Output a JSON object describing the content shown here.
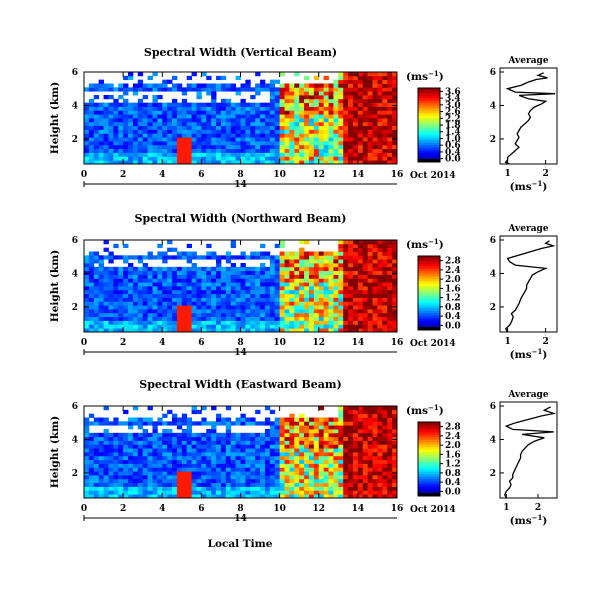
{
  "chart_data": [
    {
      "type": "heatmap",
      "title": "Spectral Width (Vertical Beam)",
      "ylabel": "Height (km)",
      "xticks": [
        "0",
        "2",
        "4",
        "6",
        "8",
        "10",
        "12",
        "14",
        "16"
      ],
      "yticks": [
        "2",
        "4",
        "6"
      ],
      "xlim": [
        0,
        16
      ],
      "ylim": [
        0.5,
        6
      ],
      "date_day": "14",
      "date_suffix": "Oct 2014",
      "colorbar": {
        "unit": "(ms",
        "unit_sup": "−1",
        "unit_close": ")",
        "ticks": [
          "3.6",
          "3.4",
          "3.0",
          "2.6",
          "2.2",
          "1.8",
          "1.4",
          "1.0",
          "0.6",
          "0.4",
          "0.0"
        ],
        "range": [
          0,
          3.6
        ]
      },
      "average": {
        "title": "Average",
        "xlabel": "(ms",
        "xlabel_sup": "−1",
        "xlabel_close": ")",
        "xticks": [
          "1",
          "2"
        ],
        "yticks": [
          "2",
          "4",
          "6"
        ],
        "xlim": [
          0.8,
          2.3
        ],
        "profile": [
          [
            1.05,
            0.5
          ],
          [
            0.95,
            0.6
          ],
          [
            1.0,
            0.75
          ],
          [
            1.0,
            0.9
          ],
          [
            1.1,
            1.1
          ],
          [
            1.2,
            1.3
          ],
          [
            1.3,
            1.5
          ],
          [
            1.2,
            1.7
          ],
          [
            1.25,
            1.9
          ],
          [
            1.3,
            2.1
          ],
          [
            1.25,
            2.3
          ],
          [
            1.3,
            2.5
          ],
          [
            1.35,
            2.7
          ],
          [
            1.45,
            2.9
          ],
          [
            1.55,
            3.1
          ],
          [
            1.6,
            3.3
          ],
          [
            1.55,
            3.5
          ],
          [
            1.6,
            3.7
          ],
          [
            1.7,
            3.9
          ],
          [
            1.9,
            4.1
          ],
          [
            2.0,
            4.25
          ],
          [
            1.55,
            4.4
          ],
          [
            1.3,
            4.6
          ],
          [
            2.25,
            4.7
          ],
          [
            1.2,
            4.8
          ],
          [
            1.0,
            5.0
          ],
          [
            1.35,
            5.2
          ],
          [
            1.55,
            5.4
          ],
          [
            1.75,
            5.55
          ],
          [
            2.05,
            5.65
          ],
          [
            1.8,
            5.8
          ],
          [
            1.95,
            5.95
          ]
        ]
      },
      "field": {
        "nx": 64,
        "ny": 24,
        "gap_top": 5.3,
        "gap_mid": [
          4.2,
          4.8
        ],
        "seed": 11
      }
    },
    {
      "type": "heatmap",
      "title": "Spectral Width (Northward Beam)",
      "ylabel": "Height (km)",
      "xticks": [
        "0",
        "2",
        "4",
        "6",
        "8",
        "10",
        "12",
        "14",
        "16"
      ],
      "yticks": [
        "2",
        "4",
        "6"
      ],
      "xlim": [
        0,
        16
      ],
      "ylim": [
        0.5,
        6
      ],
      "date_day": "14",
      "date_suffix": "Oct 2014",
      "colorbar": {
        "unit": "(ms",
        "unit_sup": "−1",
        "unit_close": ")",
        "ticks": [
          "2.8",
          "2.4",
          "2.0",
          "1.6",
          "1.2",
          "0.8",
          "0.4",
          "0.0"
        ],
        "range": [
          0,
          2.8
        ]
      },
      "average": {
        "title": "Average",
        "xlabel": "(ms",
        "xlabel_sup": "−1",
        "xlabel_close": ")",
        "xticks": [
          "1",
          "2"
        ],
        "yticks": [
          "2",
          "4",
          "6"
        ],
        "xlim": [
          0.8,
          2.3
        ],
        "profile": [
          [
            1.0,
            0.5
          ],
          [
            0.95,
            0.7
          ],
          [
            1.05,
            0.9
          ],
          [
            1.1,
            1.1
          ],
          [
            1.15,
            1.4
          ],
          [
            1.1,
            1.6
          ],
          [
            1.2,
            1.8
          ],
          [
            1.25,
            2.0
          ],
          [
            1.3,
            2.2
          ],
          [
            1.35,
            2.5
          ],
          [
            1.4,
            2.7
          ],
          [
            1.45,
            2.9
          ],
          [
            1.5,
            3.1
          ],
          [
            1.5,
            3.3
          ],
          [
            1.55,
            3.5
          ],
          [
            1.6,
            3.7
          ],
          [
            1.65,
            3.9
          ],
          [
            1.8,
            4.1
          ],
          [
            2.0,
            4.3
          ],
          [
            1.2,
            4.5
          ],
          [
            1.05,
            4.7
          ],
          [
            1.0,
            4.9
          ],
          [
            1.3,
            5.1
          ],
          [
            1.6,
            5.3
          ],
          [
            1.9,
            5.5
          ],
          [
            2.2,
            5.65
          ],
          [
            2.0,
            5.8
          ],
          [
            2.1,
            5.95
          ]
        ]
      },
      "field": {
        "nx": 64,
        "ny": 24,
        "gap_top": 5.4,
        "gap_mid": [
          4.3,
          4.8
        ],
        "seed": 23
      }
    },
    {
      "type": "heatmap",
      "title": "Spectral Width (Eastward Beam)",
      "ylabel": "Height (km)",
      "xticks": [
        "0",
        "2",
        "4",
        "6",
        "8",
        "10",
        "12",
        "14",
        "16"
      ],
      "yticks": [
        "2",
        "4",
        "6"
      ],
      "xlim": [
        0,
        16
      ],
      "ylim": [
        0.5,
        6
      ],
      "date_day": "14",
      "date_suffix": "Oct 2014",
      "colorbar": {
        "unit": "(ms",
        "unit_sup": "−1",
        "unit_close": ")",
        "ticks": [
          "2.8",
          "2.4",
          "2.0",
          "1.6",
          "1.2",
          "0.8",
          "0.4",
          "0.0"
        ],
        "range": [
          0,
          2.8
        ]
      },
      "average": {
        "title": "Average",
        "xlabel": "(ms",
        "xlabel_sup": "−1",
        "xlabel_close": ")",
        "xticks": [
          "1",
          "2"
        ],
        "yticks": [
          "2",
          "4",
          "6"
        ],
        "xlim": [
          0.8,
          2.6
        ],
        "profile": [
          [
            1.0,
            0.5
          ],
          [
            0.95,
            0.7
          ],
          [
            1.0,
            0.9
          ],
          [
            1.1,
            1.1
          ],
          [
            1.15,
            1.3
          ],
          [
            1.1,
            1.5
          ],
          [
            1.2,
            1.7
          ],
          [
            1.2,
            1.9
          ],
          [
            1.25,
            2.1
          ],
          [
            1.3,
            2.3
          ],
          [
            1.35,
            2.5
          ],
          [
            1.4,
            2.7
          ],
          [
            1.45,
            2.9
          ],
          [
            1.45,
            3.1
          ],
          [
            1.5,
            3.3
          ],
          [
            1.6,
            3.5
          ],
          [
            1.7,
            3.7
          ],
          [
            1.9,
            3.9
          ],
          [
            2.2,
            4.1
          ],
          [
            1.5,
            4.3
          ],
          [
            2.5,
            4.45
          ],
          [
            1.2,
            4.6
          ],
          [
            1.0,
            4.8
          ],
          [
            1.3,
            5.0
          ],
          [
            1.7,
            5.2
          ],
          [
            2.1,
            5.4
          ],
          [
            2.5,
            5.55
          ],
          [
            2.2,
            5.75
          ],
          [
            2.4,
            5.95
          ]
        ]
      },
      "field": {
        "nx": 64,
        "ny": 24,
        "gap_top": 5.35,
        "gap_mid": [
          4.3,
          4.9
        ],
        "seed": 37
      }
    }
  ],
  "footer": {
    "xlabel": "Local Time"
  }
}
